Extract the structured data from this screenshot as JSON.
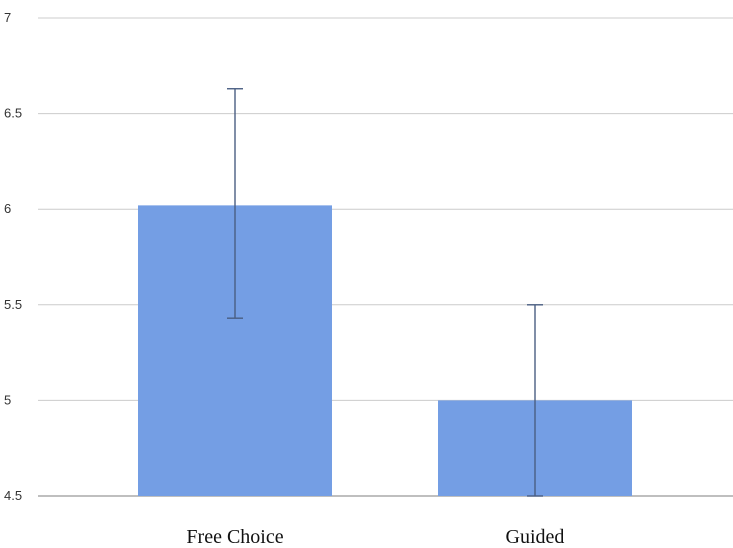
{
  "chart_data": {
    "type": "bar",
    "categories": [
      "Free Choice",
      "Guided"
    ],
    "values": [
      6.02,
      5.0
    ],
    "error_bars": [
      {
        "low": 5.43,
        "high": 6.63
      },
      {
        "low": 4.5,
        "high": 5.5
      }
    ],
    "title": "",
    "xlabel": "",
    "ylabel": "",
    "ylim": [
      4.5,
      7
    ],
    "yticks": [
      "4.5",
      "5",
      "5.5",
      "6",
      "6.5",
      "7"
    ],
    "grid": true,
    "legend": "none",
    "colors": {
      "bar": "#749ee4",
      "error_bar": "#4a5e82",
      "grid": "#cccccc",
      "axis": "#999999"
    }
  }
}
